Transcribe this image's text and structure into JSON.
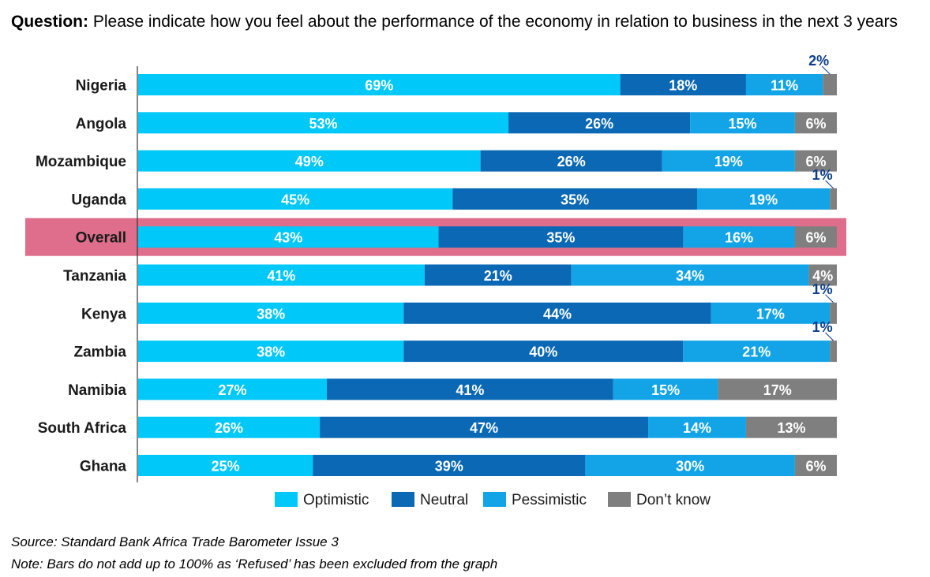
{
  "question": {
    "label": "Question:",
    "text": "Please indicate how you feel about the performance of the economy in relation to business in the next 3 years"
  },
  "colors": {
    "optimistic": "#00C8F8",
    "neutral": "#0A68B4",
    "pessimistic": "#12A4E6",
    "dont_know": "#7F7F7F",
    "highlight": "#DE6E8C",
    "small_label": "#0A3E8C"
  },
  "chart_data": {
    "type": "bar",
    "orientation": "horizontal",
    "stacked": true,
    "xlim": [
      0,
      100
    ],
    "categories": [
      "Nigeria",
      "Angola",
      "Mozambique",
      "Uganda",
      "Overall",
      "Tanzania",
      "Kenya",
      "Zambia",
      "Namibia",
      "South Africa",
      "Ghana"
    ],
    "highlighted_category": "Overall",
    "series": [
      {
        "name": "Optimistic",
        "values": [
          69,
          53,
          49,
          45,
          43,
          41,
          38,
          38,
          27,
          26,
          25
        ]
      },
      {
        "name": "Neutral",
        "values": [
          18,
          26,
          26,
          35,
          35,
          21,
          44,
          40,
          41,
          47,
          39
        ]
      },
      {
        "name": "Pessimistic",
        "values": [
          11,
          15,
          19,
          19,
          16,
          34,
          17,
          21,
          15,
          14,
          30
        ]
      },
      {
        "name": "Don’t know",
        "values": [
          2,
          6,
          6,
          1,
          6,
          4,
          1,
          1,
          17,
          13,
          6
        ]
      }
    ],
    "value_suffix": "%",
    "legend": [
      "Optimistic",
      "Neutral",
      "Pessimistic",
      "Don’t know"
    ],
    "legend_position": "bottom",
    "grid": false
  },
  "footnotes": {
    "source": "Source: Standard Bank Africa Trade Barometer Issue 3",
    "note": "Note: Bars do not add up to 100% as ‘Refused’ has been excluded from the graph"
  }
}
